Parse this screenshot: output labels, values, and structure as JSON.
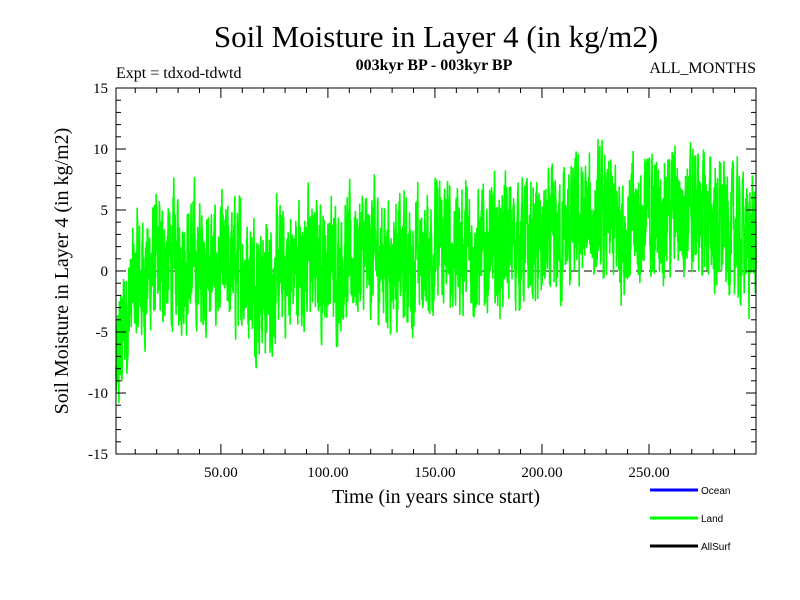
{
  "chart_data": {
    "type": "line",
    "title": "Soil Moisture in Layer 4 (in kg/m2)",
    "subtitle_left": "Expt = tdxod-tdwtd",
    "subtitle_center": "003kyr BP - 003kyr BP",
    "subtitle_right": "ALL_MONTHS",
    "xlabel": "Time (in years since start)",
    "ylabel": "Soil Moisture in Layer 4 (in kg/m2)",
    "xlim": [
      1,
      300
    ],
    "ylim": [
      -15,
      15
    ],
    "x_ticks": [
      50,
      100,
      150,
      200,
      250
    ],
    "x_tick_labels": [
      "50.00",
      "100.00",
      "150.00",
      "200.00",
      "250.00"
    ],
    "y_ticks": [
      -15,
      -10,
      -5,
      0,
      5,
      10,
      15
    ],
    "y_tick_labels": [
      "-15",
      "-10",
      "-5",
      "0",
      "5",
      "10",
      "15"
    ],
    "zero_line": true,
    "series": [
      {
        "name": "Ocean",
        "color": "#0000ff",
        "anchor_x": [],
        "anchor_y": []
      },
      {
        "name": "Land",
        "color": "#00ff00",
        "samples_per_year": 12,
        "noise_amplitude": 4,
        "anchor_x": [
          1,
          5,
          10,
          20,
          30,
          40,
          50,
          60,
          70,
          80,
          90,
          100,
          110,
          120,
          130,
          140,
          150,
          160,
          170,
          180,
          190,
          200,
          210,
          220,
          230,
          240,
          250,
          260,
          270,
          280,
          290,
          300
        ],
        "anchor_y": [
          -9,
          -4,
          -1,
          0.5,
          1,
          0.5,
          0,
          0.5,
          -1.5,
          0,
          1,
          0.5,
          1,
          1.5,
          1,
          0.5,
          2,
          2,
          1.5,
          2,
          2.5,
          2,
          3,
          4,
          4,
          3.5,
          4.5,
          5,
          5,
          4,
          3,
          2.5
        ]
      },
      {
        "name": "AllSurf",
        "color": "#000000",
        "anchor_x": [],
        "anchor_y": []
      }
    ],
    "legend": {
      "position": "bottom-right",
      "entries": [
        {
          "label": "Ocean",
          "color": "#0000ff"
        },
        {
          "label": "Land",
          "color": "#00ff00"
        },
        {
          "label": "AllSurf",
          "color": "#000000"
        }
      ]
    }
  }
}
